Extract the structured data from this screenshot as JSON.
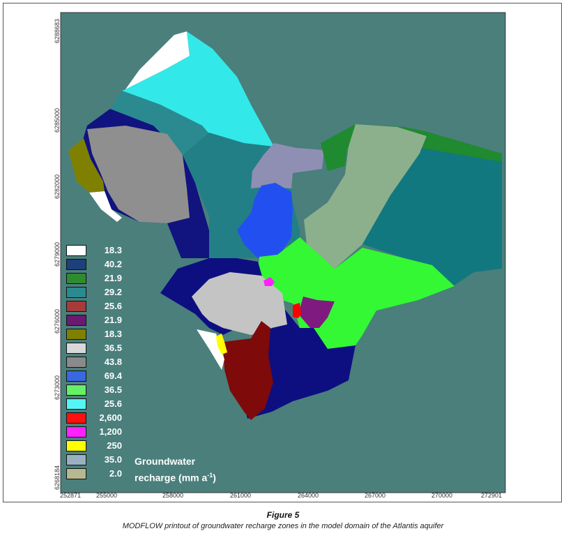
{
  "map": {
    "background_color": "#4a7f7c",
    "axis_y_ticks": [
      "6288683",
      "6285000",
      "6282000",
      "6279000",
      "6276000",
      "6273000",
      "6268184"
    ],
    "axis_x_ticks": [
      "252871",
      "255000",
      "258000",
      "261000",
      "264000",
      "267000",
      "270000",
      "272901"
    ],
    "zones": [
      {
        "name": "zone-white-north",
        "color": "#ffffff"
      },
      {
        "name": "zone-cyan",
        "color": "#33e8e8"
      },
      {
        "name": "zone-teal-north",
        "color": "#2a8a8f"
      },
      {
        "name": "zone-navy-west",
        "color": "#11137f"
      },
      {
        "name": "zone-gray-west",
        "color": "#8f8f8f"
      },
      {
        "name": "zone-olive",
        "color": "#808000"
      },
      {
        "name": "zone-white-west",
        "color": "#ffffff"
      },
      {
        "name": "zone-teal-central",
        "color": "#227f86"
      },
      {
        "name": "zone-lavender",
        "color": "#8f8fb4"
      },
      {
        "name": "zone-blue",
        "color": "#2250f0"
      },
      {
        "name": "zone-green-ne",
        "color": "#1f8a2f"
      },
      {
        "name": "zone-sage",
        "color": "#8cb08c"
      },
      {
        "name": "zone-teal-east",
        "color": "#11787f"
      },
      {
        "name": "zone-lime",
        "color": "#33f833"
      },
      {
        "name": "zone-navy-south",
        "color": "#0d0f80"
      },
      {
        "name": "zone-lightgray",
        "color": "#c4c4c4"
      },
      {
        "name": "zone-maroon",
        "color": "#7f0a0a"
      },
      {
        "name": "zone-purple",
        "color": "#7f1a80"
      },
      {
        "name": "zone-red",
        "color": "#ff0000"
      },
      {
        "name": "zone-magenta",
        "color": "#ff22ff"
      },
      {
        "name": "zone-white-south",
        "color": "#ffffff"
      },
      {
        "name": "zone-yellow",
        "color": "#ffff00"
      }
    ]
  },
  "legend": {
    "items": [
      {
        "value": "18.3",
        "color": "#ffffff"
      },
      {
        "value": "40.2",
        "color": "#1e3f7a"
      },
      {
        "value": "21.9",
        "color": "#2e8b2e"
      },
      {
        "value": "29.2",
        "color": "#2a8a8f"
      },
      {
        "value": "25.6",
        "color": "#a83a3a"
      },
      {
        "value": "21.9",
        "color": "#6a1a70"
      },
      {
        "value": "18.3",
        "color": "#808000"
      },
      {
        "value": "36.5",
        "color": "#d8d8d8"
      },
      {
        "value": "43.8",
        "color": "#8a8a8a"
      },
      {
        "value": "69.4",
        "color": "#3a68e0"
      },
      {
        "value": "36.5",
        "color": "#66f066"
      },
      {
        "value": "25.6",
        "color": "#55f5f5"
      },
      {
        "value": "2,600",
        "color": "#ff1010"
      },
      {
        "value": "1,200",
        "color": "#ff22ff"
      },
      {
        "value": "250",
        "color": "#ffff00"
      },
      {
        "value": "35.0",
        "color": "#9ab0c0"
      },
      {
        "value": "2.0",
        "color": "#b8b890"
      }
    ],
    "title_line1": "Groundwater",
    "title_line2_pre": "recharge (mm a",
    "title_line2_sup": "-1",
    "title_line2_post": ")"
  },
  "figure": {
    "label": "Figure 5",
    "caption": "MODFLOW printout of groundwater recharge zones in the model domain of the Atlantis aquifer"
  }
}
